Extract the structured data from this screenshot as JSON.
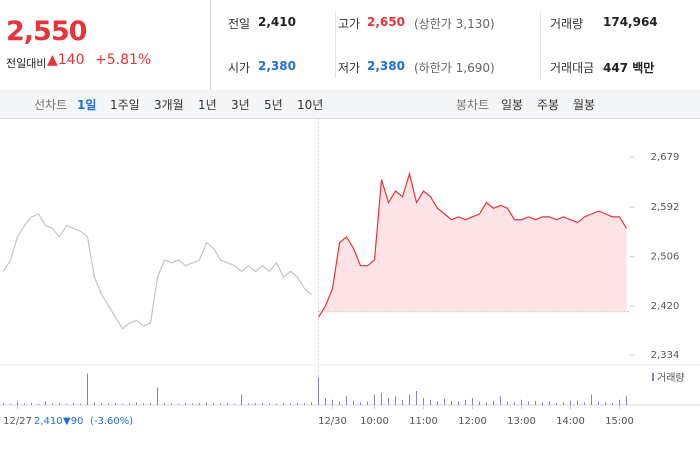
{
  "header": {
    "price": "2,550",
    "change_label": "전일대비",
    "change": "▲140",
    "change_pct": "+5.81%",
    "stats": [
      {
        "label": "전일",
        "value": "2,410",
        "color": "#222222"
      },
      {
        "label": "고가",
        "value": "2,650",
        "note": "(상한가 3,130)",
        "color": "#e8333a"
      },
      {
        "label": "거래량",
        "value": "174,964",
        "color": "#222222"
      },
      {
        "label": "시가",
        "value": "2,380",
        "color": "#1f6fd6"
      },
      {
        "label": "저가",
        "value": "2,380",
        "note": "(하한가 1,690)",
        "color": "#1f6fd6"
      },
      {
        "label": "거래대금",
        "value": "447 백만",
        "color": "#222222"
      }
    ]
  },
  "tabs": {
    "line_label": "선차트",
    "line_periods": [
      "1일",
      "1주일",
      "3개월",
      "1년",
      "3년",
      "5년",
      "10년"
    ],
    "selected": 0,
    "candle_label": "봉차트",
    "candle_periods": [
      "일봉",
      "주봉",
      "월봉"
    ]
  },
  "chart_data": {
    "type": "line",
    "categories": [
      null,
      null,
      "12/27",
      null,
      null,
      null,
      null,
      null,
      null,
      null,
      null,
      null,
      null,
      null,
      null,
      null,
      null,
      null,
      null,
      null,
      null,
      null,
      null,
      null,
      null,
      null,
      null,
      null,
      null,
      null,
      null,
      null,
      null,
      null,
      null,
      null,
      null,
      null,
      null,
      null,
      null,
      null,
      null,
      null,
      null,
      null,
      null,
      "12/30",
      null,
      null,
      null,
      null,
      null,
      "10:00",
      null,
      null,
      null,
      null,
      null,
      null,
      "11:00",
      null,
      null,
      null,
      null,
      null,
      null,
      "12:00",
      null,
      null,
      null,
      null,
      null,
      null,
      "13:00",
      null,
      null,
      null,
      null,
      null,
      null,
      "14:00",
      null,
      null,
      null,
      null,
      null,
      null,
      "15:00",
      null
    ],
    "series": [
      {
        "color": "#c4c4c4",
        "values": [
          2480,
          2500,
          2540,
          2560,
          2575,
          2580,
          2560,
          2555,
          2540,
          2560,
          2555,
          2550,
          2540,
          2470,
          2440,
          2420,
          2400,
          2380,
          2390,
          2395,
          2385,
          2390,
          2470,
          2500,
          2495,
          2500,
          2490,
          2495,
          2500,
          2530,
          2520,
          2500,
          2495,
          2490,
          2480,
          2490,
          2480,
          2490,
          2480,
          2495,
          2470,
          2480,
          2470,
          2450,
          2440,
          null,
          null,
          null,
          null,
          null,
          null,
          null,
          null,
          null,
          null,
          null,
          null,
          null,
          null,
          null,
          null,
          null,
          null,
          null,
          null,
          null,
          null,
          null,
          null,
          null,
          null,
          null,
          null,
          null,
          null,
          null,
          null,
          null,
          null,
          null,
          null,
          null,
          null,
          null,
          null,
          null,
          null,
          null,
          null,
          null
        ]
      },
      {
        "color": "#e8333a",
        "down_color": "#1f6fd6",
        "fill": "#fde3e5",
        "values": [
          null,
          null,
          null,
          null,
          null,
          null,
          null,
          null,
          null,
          null,
          null,
          null,
          null,
          null,
          null,
          null,
          null,
          null,
          null,
          null,
          null,
          null,
          null,
          null,
          null,
          null,
          null,
          null,
          null,
          null,
          null,
          null,
          null,
          null,
          null,
          null,
          null,
          null,
          null,
          null,
          null,
          null,
          null,
          null,
          null,
          2400,
          2420,
          2450,
          2530,
          2540,
          2520,
          2490,
          2490,
          2500,
          2640,
          2600,
          2620,
          2610,
          2650,
          2600,
          2620,
          2610,
          2590,
          2580,
          2570,
          2575,
          2570,
          2575,
          2580,
          2600,
          2590,
          2595,
          2590,
          2570,
          2570,
          2575,
          2570,
          2575,
          2575,
          2570,
          2575,
          2570,
          2565,
          2575,
          2580,
          2585,
          2580,
          2575,
          2575,
          2555
        ]
      }
    ],
    "reference_line": 2410,
    "ylim": [
      2317,
      2735
    ],
    "yticks": [
      {
        "value": 2679,
        "label": "2,679"
      },
      {
        "value": 2592,
        "label": "2,592"
      },
      {
        "value": 2506,
        "label": "2,506"
      },
      {
        "value": 2420,
        "label": "2,420"
      },
      {
        "value": 2334,
        "label": "2,334"
      }
    ],
    "grid": false,
    "volume": {
      "name": "거래량",
      "color": "#8a7fc0",
      "vlim": [
        0,
        100
      ],
      "values": [
        5,
        3,
        8,
        4,
        6,
        3,
        10,
        4,
        5,
        3,
        6,
        4,
        90,
        8,
        5,
        4,
        6,
        3,
        5,
        8,
        4,
        6,
        50,
        5,
        4,
        3,
        6,
        4,
        5,
        8,
        6,
        4,
        5,
        3,
        30,
        4,
        5,
        6,
        4,
        3,
        5,
        4,
        6,
        5,
        8,
        80,
        20,
        15,
        10,
        25,
        12,
        8,
        10,
        30,
        35,
        20,
        25,
        15,
        30,
        40,
        20,
        15,
        10,
        18,
        12,
        10,
        15,
        20,
        10,
        8,
        12,
        25,
        10,
        8,
        15,
        10,
        12,
        8,
        10,
        6,
        8,
        10,
        12,
        8,
        30,
        10,
        8,
        6,
        15,
        25
      ]
    },
    "prev_summary": {
      "price": "2,410",
      "change": "▼90",
      "pct": "(-3.60%)",
      "color": "#1f6fd6"
    }
  }
}
